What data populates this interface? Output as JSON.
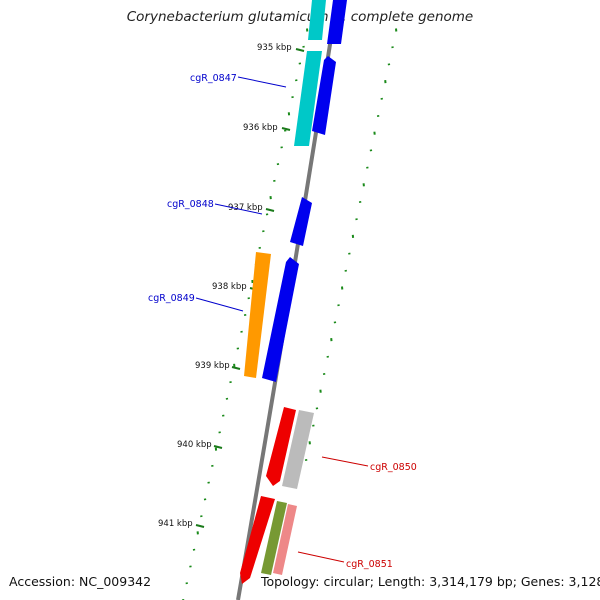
{
  "title": "Corynebacterium glutamicum R, complete genome",
  "footer": {
    "accession": "Accession: NC_009342",
    "topology": "Topology: circular; Length: 3,314,179 bp; Genes: 3,128"
  },
  "ticks": [
    "935 kbp",
    "936 kbp",
    "937 kbp",
    "938 kbp",
    "939 kbp",
    "940 kbp",
    "941 kbp"
  ],
  "genes": [
    {
      "label": "cgR_0847",
      "color": "#0000cc"
    },
    {
      "label": "cgR_0848",
      "color": "#0000cc"
    },
    {
      "label": "cgR_0849",
      "color": "#0000cc"
    },
    {
      "label": "cgR_0850",
      "color": "#cc0000"
    },
    {
      "label": "cgR_0851",
      "color": "#cc0000"
    }
  ],
  "colors": {
    "backbone": "#777777",
    "tick": "#1a7a1a",
    "dots": "#1a8a1a",
    "cds_blue": "#0000ee",
    "cds_cyan": "#00c8c8",
    "cds_orange": "#ff9900",
    "cds_red": "#ee0000",
    "cds_grey": "#bbbbbb",
    "cds_olive": "#779933",
    "cds_salmon": "#ee8888"
  }
}
